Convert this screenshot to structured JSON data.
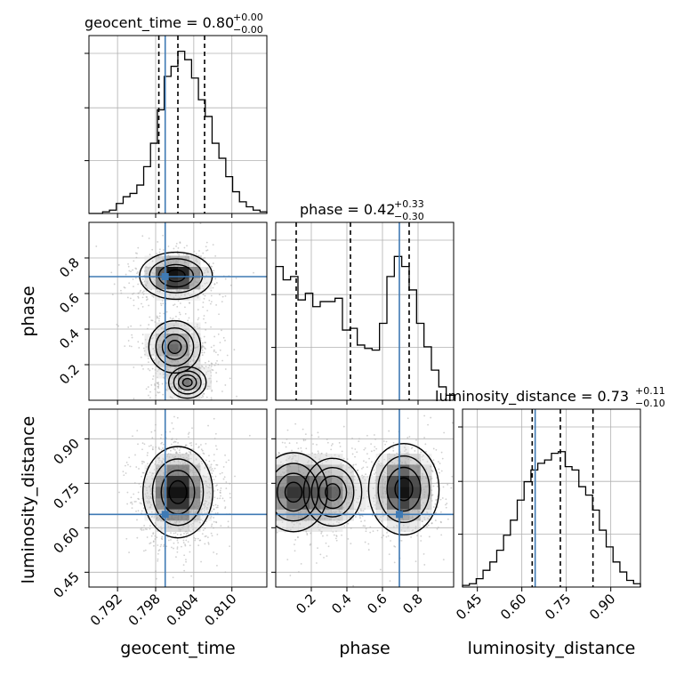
{
  "chart_data": {
    "type": "corner",
    "colors": {
      "truth": "#3f7ab4",
      "hist": "#000000",
      "grid": "#b0b0b0",
      "scatter": "#aaaaaa"
    },
    "grid": true,
    "parameters": [
      {
        "name": "geocent_time",
        "xlabel": "geocent_time",
        "range": [
          0.7875,
          0.8155
        ],
        "ticks": [
          0.792,
          0.798,
          0.804,
          0.81
        ],
        "tick_labels": [
          "0.792",
          "0.798",
          "0.804",
          "0.810"
        ],
        "truth": 0.7995,
        "quantiles": [
          0.7985,
          0.8015,
          0.8057
        ],
        "title_main": "geocent_time = 0.80",
        "title_plus": "+0.00",
        "title_minus": "−0.00",
        "hist": [
          0.0,
          0.0,
          0.01,
          0.02,
          0.06,
          0.1,
          0.12,
          0.17,
          0.28,
          0.42,
          0.62,
          0.82,
          0.88,
          0.97,
          0.92,
          0.81,
          0.68,
          0.58,
          0.42,
          0.33,
          0.22,
          0.13,
          0.07,
          0.04,
          0.02,
          0.01
        ]
      },
      {
        "name": "phase",
        "xlabel": "phase",
        "ylabel": "phase",
        "range": [
          0.0,
          1.0
        ],
        "ticks": [
          0.2,
          0.4,
          0.6,
          0.8
        ],
        "tick_labels": [
          "0.2",
          "0.4",
          "0.6",
          "0.8"
        ],
        "truth": 0.695,
        "quantiles": [
          0.115,
          0.42,
          0.75
        ],
        "title_main": "phase = 0.42",
        "title_plus": "+0.33",
        "title_minus": "−0.30",
        "hist": [
          0.8,
          0.72,
          0.74,
          0.6,
          0.64,
          0.56,
          0.59,
          0.59,
          0.61,
          0.42,
          0.43,
          0.33,
          0.31,
          0.3,
          0.46,
          0.74,
          0.86,
          0.8,
          0.66,
          0.46,
          0.32,
          0.18,
          0.08,
          0.03
        ]
      },
      {
        "name": "luminosity_distance",
        "xlabel": "luminosity_distance",
        "ylabel": "luminosity_distance",
        "range": [
          0.4,
          1.0
        ],
        "ticks": [
          0.45,
          0.6,
          0.75,
          0.9
        ],
        "tick_labels": [
          "0.45",
          "0.60",
          "0.75",
          "0.90"
        ],
        "truth": 0.645,
        "quantiles": [
          0.635,
          0.73,
          0.84
        ],
        "title_main": "luminosity_distance = 0.73",
        "title_plus": "+0.11",
        "title_minus": "−0.10",
        "hist": [
          0.01,
          0.02,
          0.05,
          0.1,
          0.15,
          0.22,
          0.31,
          0.4,
          0.52,
          0.63,
          0.7,
          0.74,
          0.76,
          0.8,
          0.81,
          0.72,
          0.7,
          0.6,
          0.55,
          0.46,
          0.34,
          0.24,
          0.15,
          0.09,
          0.04,
          0.02
        ]
      }
    ],
    "contours_2d": [
      {
        "x": "geocent_time",
        "y": "phase",
        "modes": [
          {
            "x": 0.8012,
            "y": 0.7,
            "sx": 0.0026,
            "sy": 0.06,
            "w": 1.0
          },
          {
            "x": 0.801,
            "y": 0.3,
            "sx": 0.0025,
            "sy": 0.09,
            "w": 0.55
          },
          {
            "x": 0.803,
            "y": 0.1,
            "sx": 0.002,
            "sy": 0.06,
            "w": 0.45
          }
        ]
      },
      {
        "x": "geocent_time",
        "y": "luminosity_distance",
        "modes": [
          {
            "x": 0.8015,
            "y": 0.72,
            "sx": 0.0025,
            "sy": 0.07,
            "w": 1.0
          }
        ]
      },
      {
        "x": "phase",
        "y": "luminosity_distance",
        "modes": [
          {
            "x": 0.1,
            "y": 0.72,
            "sx": 0.1,
            "sy": 0.07,
            "w": 0.75
          },
          {
            "x": 0.32,
            "y": 0.72,
            "sx": 0.1,
            "sy": 0.07,
            "w": 0.55
          },
          {
            "x": 0.72,
            "y": 0.73,
            "sx": 0.09,
            "sy": 0.07,
            "w": 1.0
          }
        ]
      }
    ]
  }
}
